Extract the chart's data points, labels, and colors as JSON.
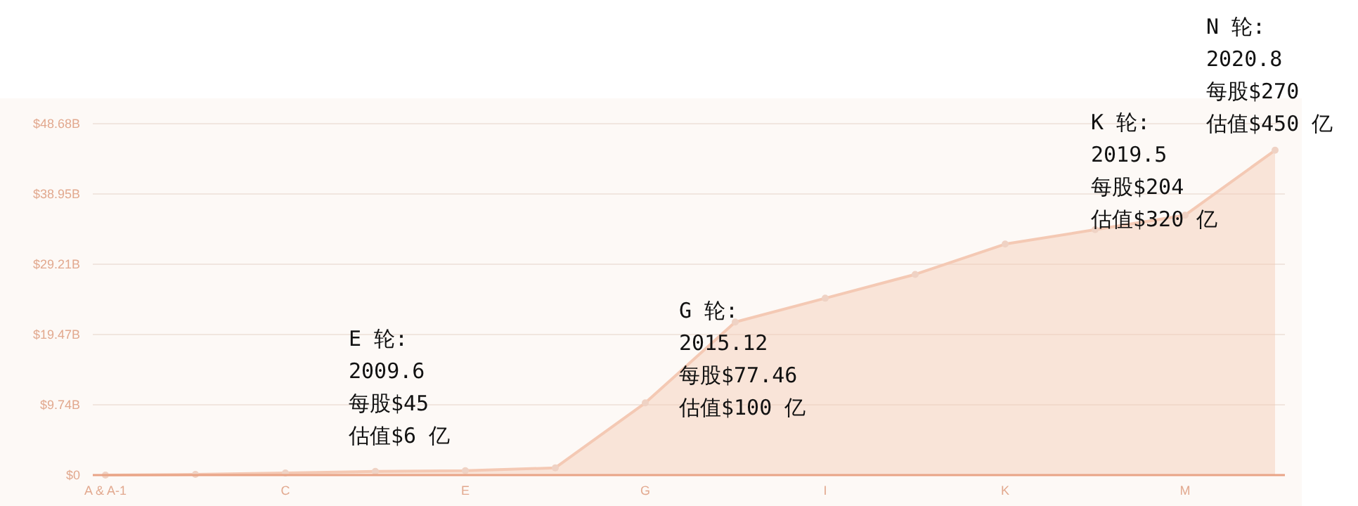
{
  "chart_data": {
    "type": "area",
    "categories": [
      "A & A-1",
      null,
      "C",
      null,
      "E",
      null,
      "G",
      null,
      "I",
      null,
      "K",
      null,
      "M",
      null
    ],
    "values": [
      0,
      0.1,
      0.3,
      0.5,
      0.6,
      1.0,
      10,
      21.2,
      24.5,
      27.8,
      32,
      34,
      36,
      45
    ],
    "color": "#f4c9b4",
    "marker": "circle",
    "grid": "y",
    "ylim": [
      0,
      48.68
    ],
    "yticks": [
      {
        "value": 0,
        "label": "$0"
      },
      {
        "value": 9.74,
        "label": "$9.74B"
      },
      {
        "value": 19.47,
        "label": "$19.47B"
      },
      {
        "value": 29.21,
        "label": "$29.21B"
      },
      {
        "value": 38.95,
        "label": "$38.95B"
      },
      {
        "value": 48.68,
        "label": "$48.68B"
      }
    ],
    "annotations": [
      "E 轮:\n2009.6\n每股$45\n估值$6 亿",
      "G 轮:\n2015.12\n每股$77.46\n估值$100 亿",
      "K 轮:\n2019.5\n每股$204\n估值$320 亿",
      "N 轮:\n2020.8\n每股$270\n估值$450 亿"
    ]
  }
}
